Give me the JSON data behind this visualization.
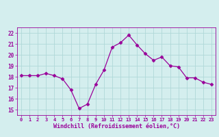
{
  "x": [
    0,
    1,
    2,
    3,
    4,
    5,
    6,
    7,
    8,
    9,
    10,
    11,
    12,
    13,
    14,
    15,
    16,
    17,
    18,
    19,
    20,
    21,
    22,
    23
  ],
  "y": [
    18.1,
    18.1,
    18.1,
    18.3,
    18.1,
    17.8,
    16.8,
    15.1,
    15.5,
    17.3,
    18.6,
    20.7,
    21.1,
    21.8,
    20.9,
    20.1,
    19.5,
    19.8,
    19.0,
    18.9,
    17.9,
    17.9,
    17.5,
    17.3
  ],
  "line_color": "#990099",
  "marker": "D",
  "marker_size": 2.5,
  "bg_color": "#d4eeee",
  "grid_color": "#b0d8d8",
  "xlabel": "Windchill (Refroidissement éolien,°C)",
  "xlabel_color": "#990099",
  "tick_color": "#990099",
  "ylim": [
    14.5,
    22.5
  ],
  "yticks": [
    15,
    16,
    17,
    18,
    19,
    20,
    21,
    22
  ],
  "xlim": [
    -0.5,
    23.5
  ],
  "xticks": [
    0,
    1,
    2,
    3,
    4,
    5,
    6,
    7,
    8,
    9,
    10,
    11,
    12,
    13,
    14,
    15,
    16,
    17,
    18,
    19,
    20,
    21,
    22,
    23
  ]
}
